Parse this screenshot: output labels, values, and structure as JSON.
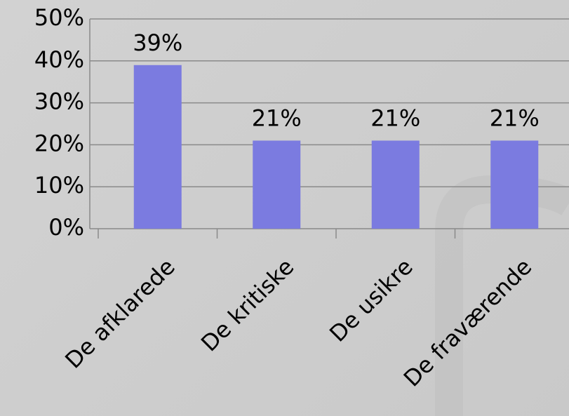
{
  "chart_data": {
    "type": "bar",
    "categories": [
      "De afklarede",
      "De kritiske",
      "De usikre",
      "De fraværende"
    ],
    "values": [
      39,
      21,
      21,
      21
    ],
    "value_labels": [
      "39%",
      "21%",
      "21%",
      "21%"
    ],
    "color": "#7b7be0",
    "ylim": [
      0,
      50
    ],
    "yticks": [
      {
        "value": 0,
        "label": "0%"
      },
      {
        "value": 10,
        "label": "10%"
      },
      {
        "value": 20,
        "label": "20%"
      },
      {
        "value": 30,
        "label": "30%"
      },
      {
        "value": 40,
        "label": "40%"
      },
      {
        "value": 50,
        "label": "50%"
      }
    ],
    "grid": true
  }
}
